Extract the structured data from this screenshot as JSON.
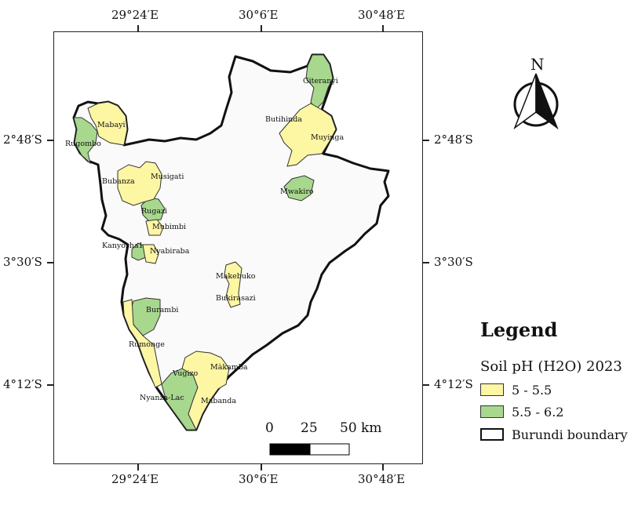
{
  "coords": {
    "top": [
      "29°24′E",
      "30°6′E",
      "30°48′E"
    ],
    "bottom": [
      "29°24′E",
      "30°6′E",
      "30°48′E"
    ],
    "left": [
      "2°48′S",
      "3°30′S",
      "4°12′S"
    ],
    "right": [
      "2°48′S",
      "3°30′S",
      "4°12′S"
    ]
  },
  "north_arrow": {
    "label": "N"
  },
  "communes": [
    {
      "name": "Giteranyi",
      "class": "5.5 - 6.2"
    },
    {
      "name": "Butihinda",
      "class": "5 - 5.5"
    },
    {
      "name": "Muyinga",
      "class": "5 - 5.5"
    },
    {
      "name": "Mabayi",
      "class": "5 - 5.5"
    },
    {
      "name": "Rugombo",
      "class": "5.5 - 6.2"
    },
    {
      "name": "Mwakiro",
      "class": "5.5 - 6.2"
    },
    {
      "name": "Musigati",
      "class": "5 - 5.5"
    },
    {
      "name": "Bubanza",
      "class": "5 - 5.5"
    },
    {
      "name": "Rugazi",
      "class": "5.5 - 6.2"
    },
    {
      "name": "Mubimbi",
      "class": "5 - 5.5"
    },
    {
      "name": "Kanyosha1",
      "class": "5.5 - 6.2"
    },
    {
      "name": "Nyabiraba",
      "class": "5 - 5.5"
    },
    {
      "name": "Makebuko",
      "class": "5 - 5.5"
    },
    {
      "name": "Bukirasazi",
      "class": "5 - 5.5"
    },
    {
      "name": "Burambi",
      "class": "5.5 - 6.2"
    },
    {
      "name": "Rumonge",
      "class": "5 - 5.5"
    },
    {
      "name": "Màkamba",
      "class": "5 - 5.5"
    },
    {
      "name": "Vugizo",
      "class": "5.5 - 6.2"
    },
    {
      "name": "Nyanza-Lac",
      "class": "5.5 - 6.2"
    },
    {
      "name": "Mabanda",
      "class": "5 - 5.5"
    }
  ],
  "scale_bar": {
    "labels": [
      "0",
      "25",
      "50 km"
    ]
  },
  "legend": {
    "title": "Legend",
    "subtitle": "Soil pH (H2O) 2023",
    "items": [
      {
        "label": "5 - 5.5",
        "color": "#fdf6a3"
      },
      {
        "label": "5.5 - 6.2",
        "color": "#a8d88e"
      },
      {
        "label": "Burundi boundary",
        "color": "#ffffff"
      }
    ]
  },
  "colors": {
    "country_fill": "#fafafa",
    "boundary": "#111111",
    "low_ph": "#fdf6a3",
    "high_ph": "#a8d88e"
  }
}
